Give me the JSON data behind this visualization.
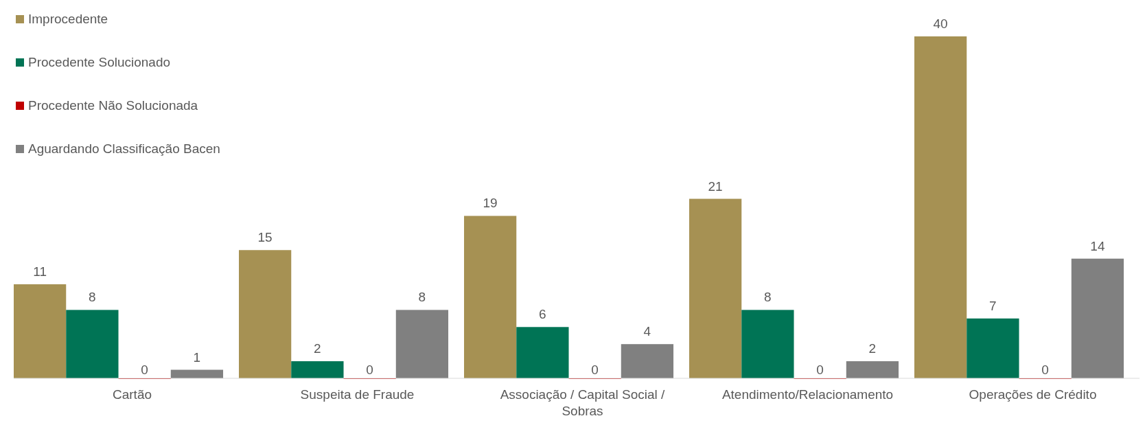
{
  "chart_data": {
    "type": "bar",
    "categories": [
      "Cartão",
      "Suspeita de Fraude",
      "Associação / Capital Social / Sobras",
      "Atendimento/Relacionamento",
      "Operações de Crédito"
    ],
    "series": [
      {
        "name": "Improcedente",
        "color": "#a69153",
        "values": [
          11,
          15,
          19,
          21,
          40
        ]
      },
      {
        "name": "Procedente Solucionado",
        "color": "#007455",
        "values": [
          8,
          2,
          6,
          8,
          7
        ]
      },
      {
        "name": "Procedente Não Solucionada",
        "color": "#c00000",
        "values": [
          0,
          0,
          0,
          0,
          0
        ]
      },
      {
        "name": "Aguardando Classificação Bacen",
        "color": "#808080",
        "values": [
          1,
          8,
          4,
          2,
          14
        ]
      }
    ],
    "data_labels": true,
    "legend": "top left"
  }
}
